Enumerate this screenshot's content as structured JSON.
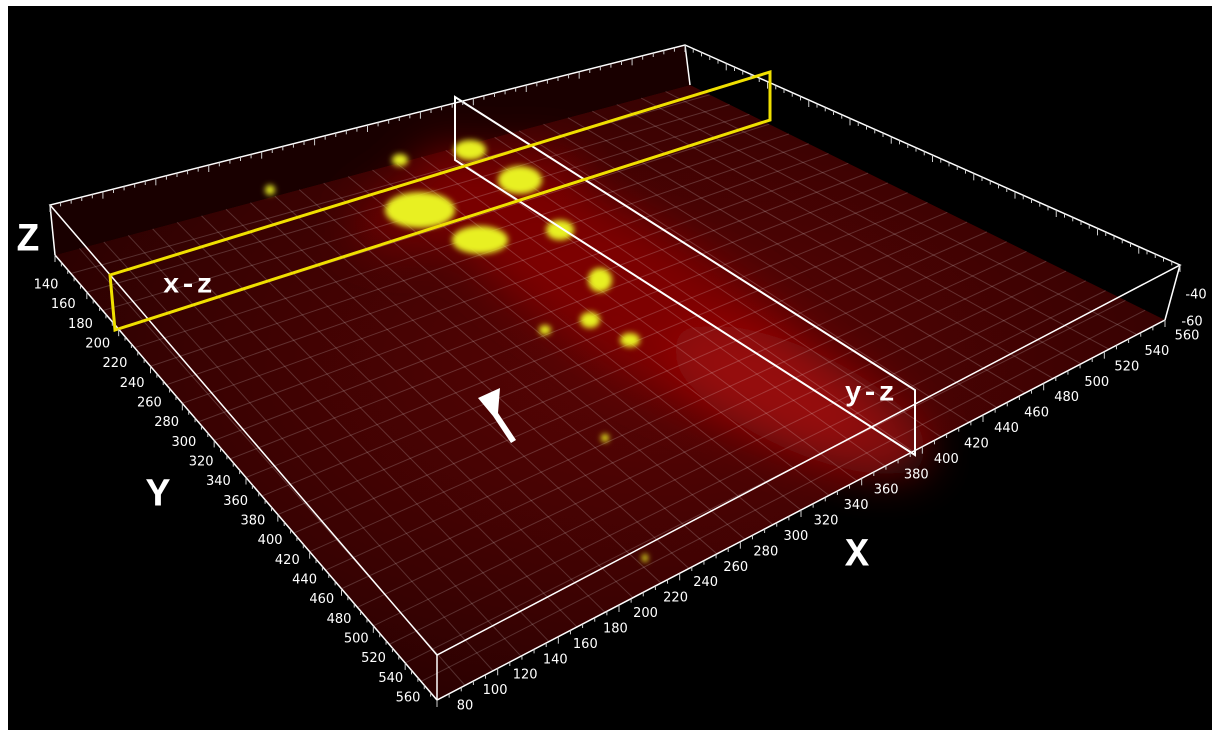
{
  "labels": {
    "z_axis": "Z",
    "y_axis": "Y",
    "x_axis": "X",
    "xz_slice": "x-z",
    "yz_slice": "y-z"
  },
  "y_ticks": [
    140,
    160,
    180,
    200,
    220,
    240,
    260,
    280,
    300,
    320,
    340,
    360,
    380,
    400,
    420,
    440,
    460,
    480,
    500,
    520,
    540,
    560
  ],
  "x_ticks": [
    80,
    100,
    120,
    140,
    160,
    180,
    200,
    220,
    240,
    260,
    280,
    300,
    320,
    340,
    360,
    380,
    400,
    420,
    440,
    460,
    480,
    500,
    520,
    540,
    560
  ],
  "z_ticks": [
    -40,
    -60
  ]
}
